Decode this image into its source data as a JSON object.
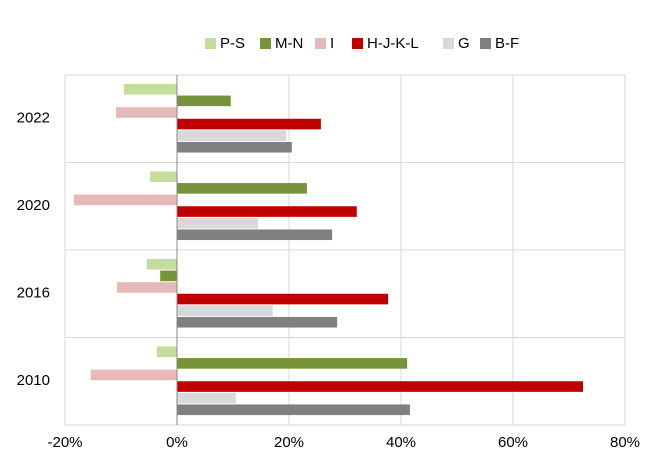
{
  "chart_data": {
    "type": "hbar",
    "categories": [
      "2022",
      "2020",
      "2016",
      "2010"
    ],
    "series": [
      {
        "name": "P-S",
        "color": "#c4dd9b",
        "values": [
          -9.5,
          -4.8,
          -5.4,
          -3.6
        ]
      },
      {
        "name": "M-N",
        "color": "#77933c",
        "values": [
          9.6,
          23.2,
          -3.0,
          41.1
        ]
      },
      {
        "name": "I",
        "color": "#e6b9b8",
        "values": [
          -10.9,
          -18.4,
          -10.7,
          -15.4
        ]
      },
      {
        "name": "H-J-K-L",
        "color": "#c00000",
        "values": [
          25.7,
          32.1,
          37.7,
          72.5
        ]
      },
      {
        "name": "G",
        "color": "#d9d9d9",
        "values": [
          19.5,
          14.5,
          17.1,
          10.5
        ]
      },
      {
        "name": "B-F",
        "color": "#808080",
        "values": [
          20.5,
          27.7,
          28.6,
          41.6
        ]
      }
    ],
    "xlim": [
      -20,
      80
    ],
    "xticks": [
      {
        "value": -20,
        "label": "-20%"
      },
      {
        "value": 0,
        "label": "0%"
      },
      {
        "value": 20,
        "label": "20%"
      },
      {
        "value": 40,
        "label": "40%"
      },
      {
        "value": 60,
        "label": "60%"
      },
      {
        "value": 80,
        "label": "80%"
      }
    ],
    "grid": true
  }
}
